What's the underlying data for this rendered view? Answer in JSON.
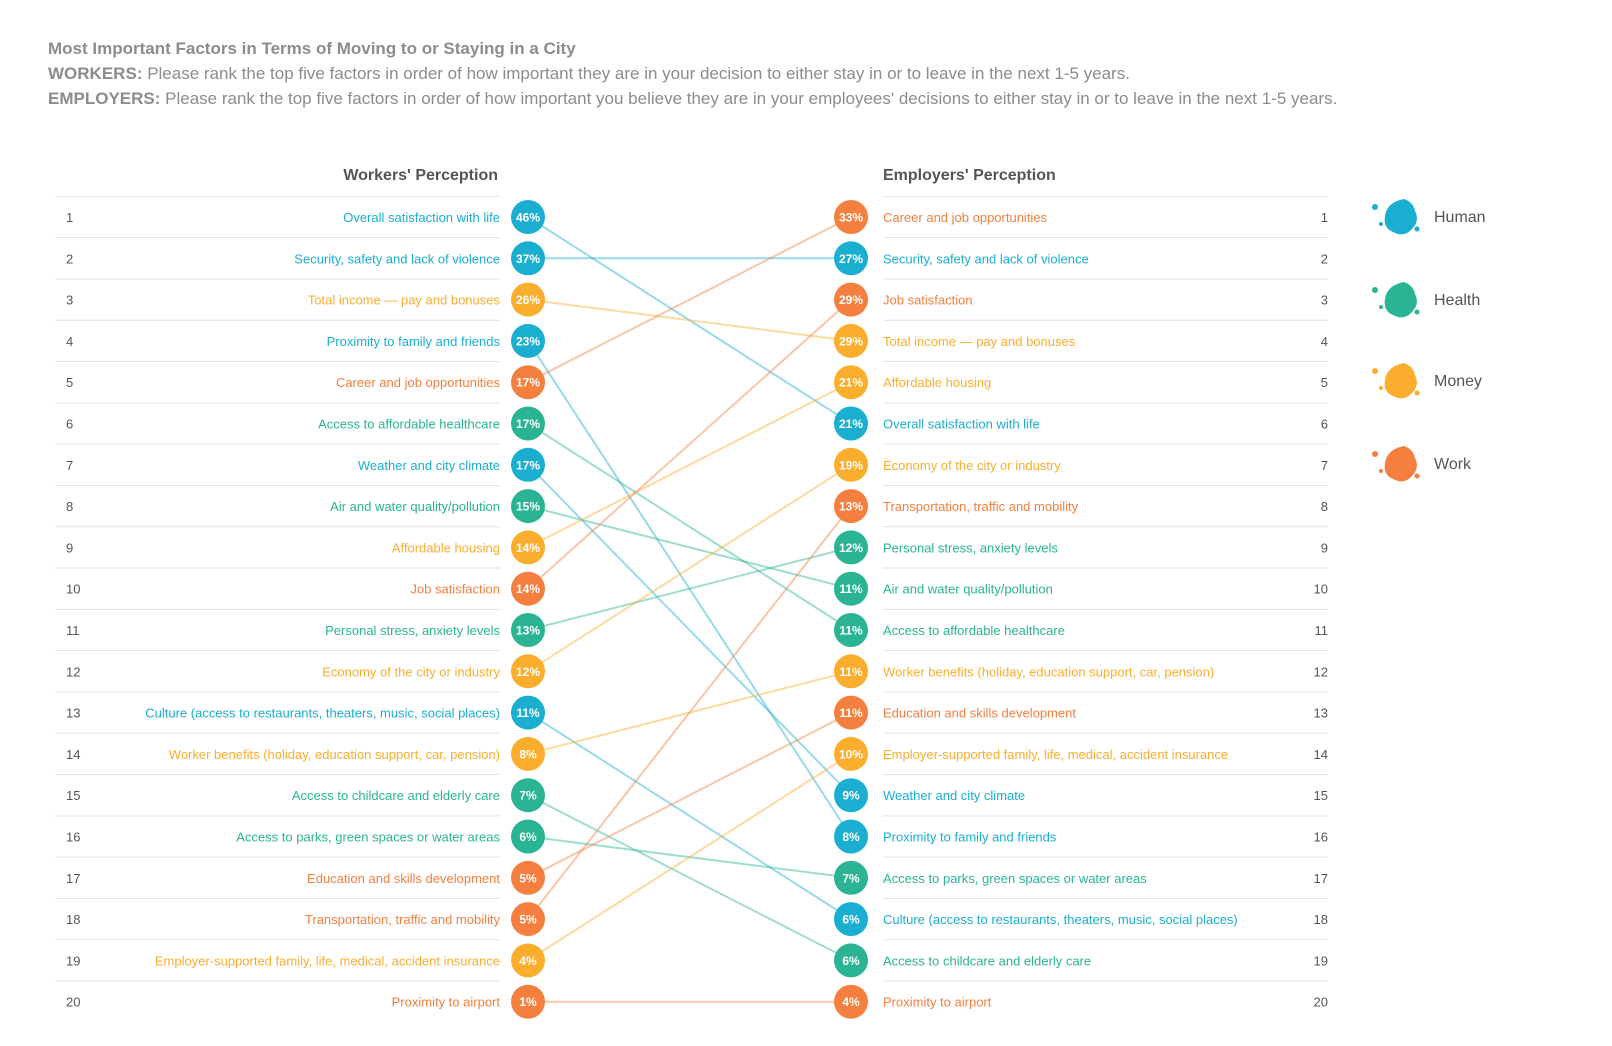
{
  "header": {
    "title": "Most Important Factors in Terms of Moving to or Staying in a City",
    "workers_label": "WORKERS:",
    "workers_question": "Please rank the top five factors in order of how important they are in your decision to either stay in or to leave in the next 1-5 years.",
    "employers_label": "EMPLOYERS:",
    "employers_question": "Please rank the top five factors in order of how important you believe they are in your employees' decisions to either stay in or to leave in the next 1-5 years."
  },
  "colors": {
    "human": "#1aaed0",
    "health": "#2ab494",
    "money": "#fbae2d",
    "work": "#f47f3f",
    "rule": "#e3e3e3",
    "rank": "#555555",
    "heading": "#555555"
  },
  "chart_data": {
    "type": "slope",
    "left_title": "Workers' Perception",
    "right_title": "Employers' Perception",
    "ranks": [
      1,
      2,
      3,
      4,
      5,
      6,
      7,
      8,
      9,
      10,
      11,
      12,
      13,
      14,
      15,
      16,
      17,
      18,
      19,
      20
    ],
    "legend": [
      {
        "category": "human",
        "label": "Human"
      },
      {
        "category": "health",
        "label": "Health"
      },
      {
        "category": "money",
        "label": "Money"
      },
      {
        "category": "work",
        "label": "Work"
      }
    ],
    "workers": [
      {
        "label": "Overall satisfaction with life",
        "value": "46%",
        "category": "human"
      },
      {
        "label": "Security, safety and lack of violence",
        "value": "37%",
        "category": "human"
      },
      {
        "label": "Total income — pay and bonuses",
        "value": "26%",
        "category": "money"
      },
      {
        "label": "Proximity to family and friends",
        "value": "23%",
        "category": "human"
      },
      {
        "label": "Career and job opportunities",
        "value": "17%",
        "category": "work"
      },
      {
        "label": "Access to affordable healthcare",
        "value": "17%",
        "category": "health"
      },
      {
        "label": "Weather and city climate",
        "value": "17%",
        "category": "human"
      },
      {
        "label": "Air and water quality/pollution",
        "value": "15%",
        "category": "health"
      },
      {
        "label": "Affordable housing",
        "value": "14%",
        "category": "money"
      },
      {
        "label": "Job satisfaction",
        "value": "14%",
        "category": "work"
      },
      {
        "label": "Personal stress, anxiety levels",
        "value": "13%",
        "category": "health"
      },
      {
        "label": "Economy of the city or industry",
        "value": "12%",
        "category": "money"
      },
      {
        "label": "Culture (access to restaurants, theaters, music, social places)",
        "value": "11%",
        "category": "human"
      },
      {
        "label": "Worker benefits (holiday, education support, car, pension)",
        "value": "8%",
        "category": "money"
      },
      {
        "label": "Access to childcare and elderly care",
        "value": "7%",
        "category": "health"
      },
      {
        "label": "Access to parks, green spaces or water areas",
        "value": "6%",
        "category": "health"
      },
      {
        "label": "Education and skills development",
        "value": "5%",
        "category": "work"
      },
      {
        "label": "Transportation, traffic and mobility",
        "value": "5%",
        "category": "work"
      },
      {
        "label": "Employer-supported family, life, medical, accident insurance",
        "value": "4%",
        "category": "money"
      },
      {
        "label": "Proximity to airport",
        "value": "1%",
        "category": "work"
      }
    ],
    "employers": [
      {
        "label": "Career and job opportunities",
        "value": "33%",
        "category": "work"
      },
      {
        "label": "Security, safety and lack of violence",
        "value": "27%",
        "category": "human"
      },
      {
        "label": "Job satisfaction",
        "value": "29%",
        "category": "work"
      },
      {
        "label": "Total income — pay and bonuses",
        "value": "29%",
        "category": "money"
      },
      {
        "label": "Affordable housing",
        "value": "21%",
        "category": "money"
      },
      {
        "label": "Overall satisfaction with life",
        "value": "21%",
        "category": "human"
      },
      {
        "label": "Economy of the city or industry",
        "value": "19%",
        "category": "money"
      },
      {
        "label": "Transportation, traffic and mobility",
        "value": "13%",
        "category": "work"
      },
      {
        "label": "Personal stress, anxiety levels",
        "value": "12%",
        "category": "health"
      },
      {
        "label": "Air and water quality/pollution",
        "value": "11%",
        "category": "health"
      },
      {
        "label": "Access to affordable healthcare",
        "value": "11%",
        "category": "health"
      },
      {
        "label": "Worker benefits (holiday, education support, car, pension)",
        "value": "11%",
        "category": "money"
      },
      {
        "label": "Education and skills development",
        "value": "11%",
        "category": "work"
      },
      {
        "label": "Employer-supported family, life, medical, accident insurance",
        "value": "10%",
        "category": "money"
      },
      {
        "label": "Weather and city climate",
        "value": "9%",
        "category": "human"
      },
      {
        "label": "Proximity to family and friends",
        "value": "8%",
        "category": "human"
      },
      {
        "label": "Access to parks, green spaces or water areas",
        "value": "7%",
        "category": "health"
      },
      {
        "label": "Culture (access to restaurants, theaters, music, social places)",
        "value": "6%",
        "category": "human"
      },
      {
        "label": "Access to childcare and elderly care",
        "value": "6%",
        "category": "health"
      },
      {
        "label": "Proximity to airport",
        "value": "4%",
        "category": "work"
      }
    ]
  }
}
